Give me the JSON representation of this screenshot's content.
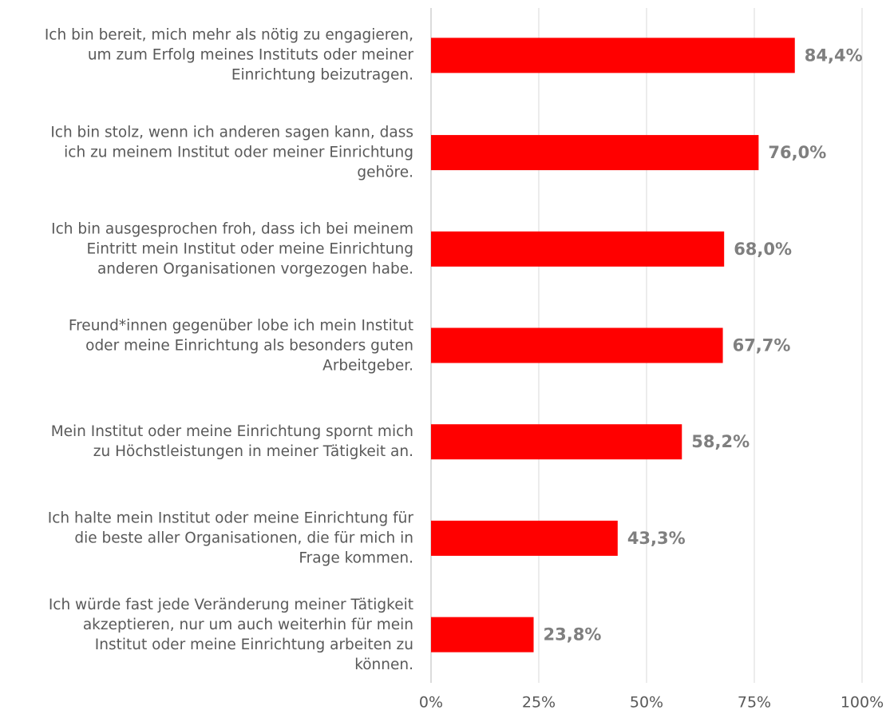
{
  "chart_data": {
    "type": "barh",
    "categories": [
      "Ich bin bereit, mich mehr als nötig zu engagieren,\num zum Erfolg meines Instituts oder meiner\nEinrichtung beizutragen.",
      "Ich bin stolz, wenn ich anderen sagen kann, dass\nich zu meinem Institut oder meiner Einrichtung\ngehöre.",
      "Ich bin ausgesprochen froh, dass ich bei meinem\nEintritt mein Institut oder meine Einrichtung\nanderen Organisationen vorgezogen habe.",
      "Freund*innen gegenüber lobe ich mein Institut\noder meine Einrichtung als besonders guten\nArbeitgeber.",
      "Mein Institut oder meine Einrichtung spornt mich\nzu Höchstleistungen in meiner Tätigkeit an.",
      "Ich halte mein Institut oder meine Einrichtung für\ndie beste aller Organisationen, die für mich in\nFrage kommen.",
      "Ich würde fast jede Veränderung meiner Tätigkeit\nakzeptieren, nur um auch weiterhin für mein\nInstitut oder meine Einrichtung arbeiten zu\nkönnen."
    ],
    "values": [
      84.4,
      76.0,
      68.0,
      67.7,
      58.2,
      43.3,
      23.8
    ],
    "value_labels": [
      "84,4%",
      "76,0%",
      "68,0%",
      "67,7%",
      "58,2%",
      "43,3%",
      "23,8%"
    ],
    "color": "#ff0000",
    "xlim": [
      0,
      100
    ],
    "xticks": [
      {
        "value": 0,
        "label": "0%"
      },
      {
        "value": 25,
        "label": "25%"
      },
      {
        "value": 50,
        "label": "50%"
      },
      {
        "value": 75,
        "label": "75%"
      },
      {
        "value": 100,
        "label": "100%"
      }
    ],
    "grid": true
  }
}
